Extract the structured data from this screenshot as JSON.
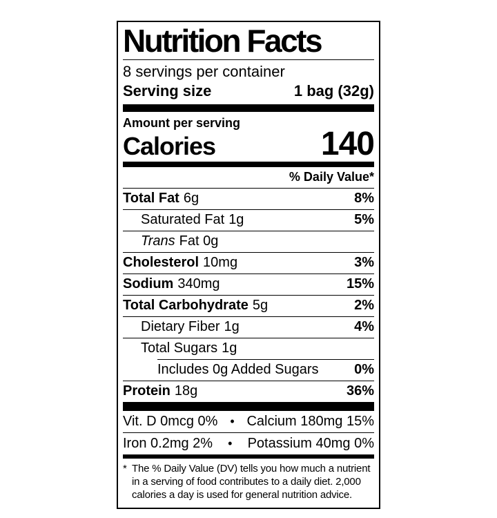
{
  "label": {
    "title": "Nutrition Facts",
    "servings_per_container": "8 servings per container",
    "serving_size_label": "Serving size",
    "serving_size_value": "1 bag (32g)",
    "amount_per_serving": "Amount per serving",
    "calories_label": "Calories",
    "calories_value": "140",
    "daily_value_header": "% Daily Value*",
    "nutrients": [
      {
        "name": "Total Fat",
        "amount": "6g",
        "dv": "8%"
      },
      {
        "name": "Saturated Fat",
        "amount": "1g",
        "dv": "5%"
      },
      {
        "name": "Trans",
        "amount": "Fat 0g",
        "dv": ""
      },
      {
        "name": "Cholesterol",
        "amount": "10mg",
        "dv": "3%"
      },
      {
        "name": "Sodium",
        "amount": "340mg",
        "dv": "15%"
      },
      {
        "name": "Total Carbohydrate",
        "amount": "5g",
        "dv": "2%"
      },
      {
        "name": "Dietary Fiber",
        "amount": "1g",
        "dv": "4%"
      },
      {
        "name": "Total Sugars",
        "amount": "1g",
        "dv": ""
      },
      {
        "name": "Includes 0g Added Sugars",
        "amount": "",
        "dv": "0%"
      },
      {
        "name": "Protein",
        "amount": "18g",
        "dv": "36%"
      }
    ],
    "micronutrients": {
      "row1_left": "Vit. D 0mcg 0%",
      "row1_right": "Calcium 180mg 15%",
      "row2_left": "Iron 0.2mg 2%",
      "row2_right": "Potassium 40mg 0%",
      "separator": "•"
    },
    "footnote_marker": "*",
    "footnote": "The % Daily Value (DV) tells you how much a nutrient in a serving of food contributes to a daily diet. 2,000 calories a day is used for general nutrition advice."
  },
  "colors": {
    "text": "#000000",
    "background": "#ffffff",
    "border": "#000000"
  }
}
